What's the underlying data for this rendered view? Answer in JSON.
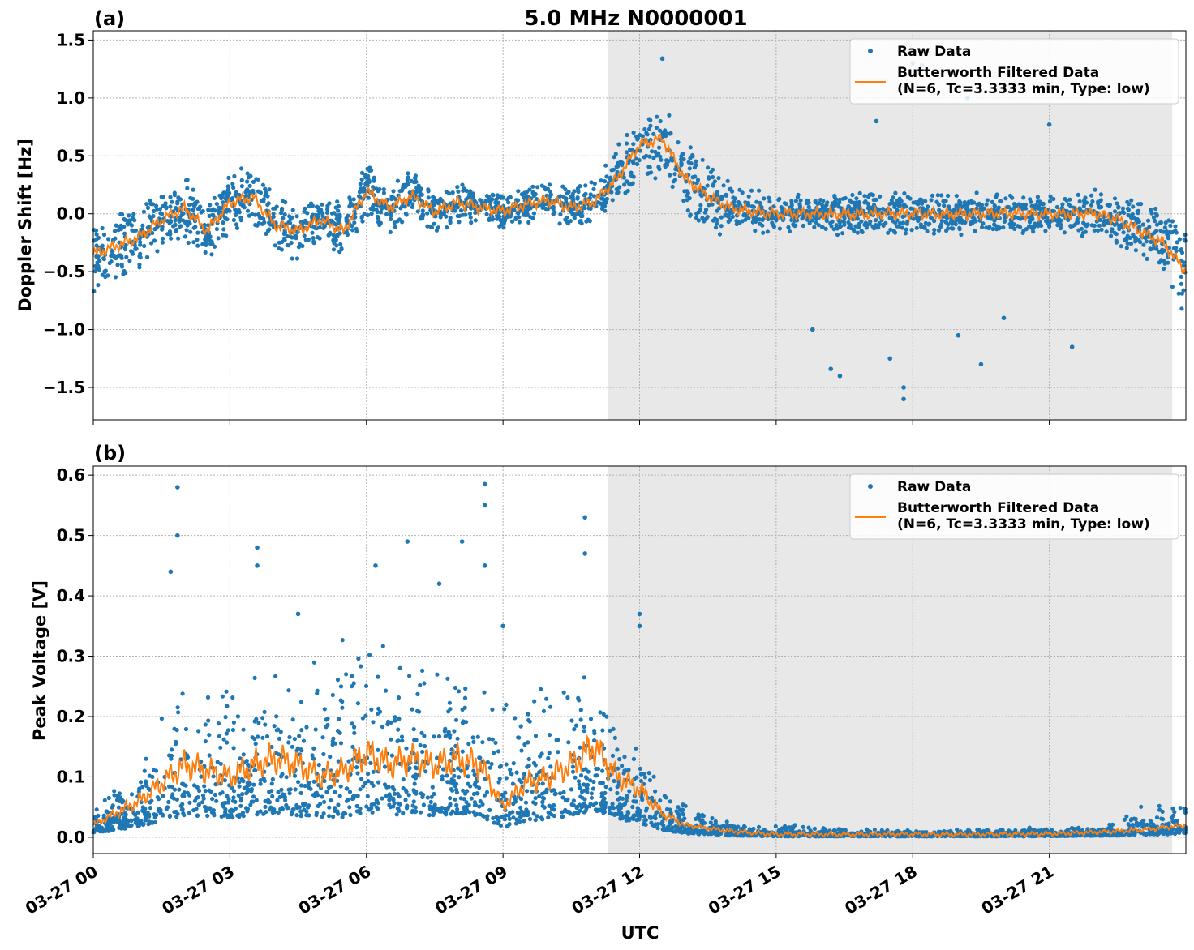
{
  "chart_data": [
    {
      "panel": "(a)",
      "type": "scatter",
      "title": "5.0 MHz N0000001",
      "xlabel": "",
      "ylabel": "Doppler Shift [Hz]",
      "xlim_hours": [
        0,
        24
      ],
      "ylim": [
        -1.78,
        1.58
      ],
      "yticks": [
        -1.5,
        -1.0,
        -0.5,
        0.0,
        0.5,
        1.0,
        1.5
      ],
      "ytick_labels": [
        "−1.5",
        "−1.0",
        "−0.5",
        "0.0",
        "0.5",
        "1.0",
        "1.5"
      ],
      "grid": true,
      "shaded_region_hours": [
        11.3,
        23.7
      ],
      "legend_position": "top-right",
      "legend": [
        "Raw Data",
        "Butterworth Filtered Data\n(N=6, Tc=3.3333 min, Type: low)"
      ],
      "series": [
        {
          "name": "Butterworth Filtered Data\n(N=6, Tc=3.3333 min, Type: low)",
          "kind": "line",
          "x_hours": [
            0,
            0.5,
            1,
            1.5,
            2,
            2.5,
            3,
            3.5,
            4,
            4.5,
            5,
            5.5,
            6,
            6.5,
            7,
            7.5,
            8,
            8.5,
            9,
            9.5,
            10,
            10.5,
            11,
            11.5,
            12,
            12.5,
            13,
            13.5,
            14,
            14.5,
            15,
            16,
            17,
            18,
            19,
            20,
            21,
            22,
            22.5,
            23,
            23.5,
            24
          ],
          "values": [
            -0.35,
            -0.28,
            -0.2,
            -0.05,
            0.05,
            -0.15,
            0.1,
            0.15,
            -0.1,
            -0.15,
            -0.05,
            -0.15,
            0.2,
            0.05,
            0.15,
            0.02,
            0.1,
            0.05,
            0.02,
            0.08,
            0.12,
            0.05,
            0.1,
            0.3,
            0.6,
            0.65,
            0.3,
            0.15,
            0.05,
            0.02,
            0.0,
            0.0,
            0.0,
            0.0,
            0.0,
            0.0,
            0.0,
            0.0,
            -0.05,
            -0.15,
            -0.25,
            -0.5
          ]
        },
        {
          "name": "Raw Data",
          "kind": "points",
          "spread_envelope_x_hours": [
            0,
            3,
            6,
            9,
            11,
            12,
            13,
            15,
            18,
            21,
            23,
            24
          ],
          "spread_envelope_halfwidth": [
            0.25,
            0.2,
            0.18,
            0.12,
            0.15,
            0.25,
            0.25,
            0.12,
            0.15,
            0.12,
            0.2,
            0.3
          ],
          "outliers": [
            [
              12.5,
              1.34
            ],
            [
              18,
              1.3
            ],
            [
              18.2,
              1.28
            ],
            [
              17.8,
              -1.6
            ],
            [
              17.8,
              -1.5
            ],
            [
              16.2,
              -1.34
            ],
            [
              16.4,
              -1.4
            ],
            [
              17.5,
              -1.25
            ],
            [
              21.5,
              -1.15
            ],
            [
              15.8,
              -1.0
            ],
            [
              19,
              -1.05
            ],
            [
              19.5,
              -1.3
            ],
            [
              20,
              -0.9
            ],
            [
              21,
              0.77
            ],
            [
              17.2,
              0.8
            ],
            [
              19.2,
              1.0
            ]
          ]
        }
      ]
    },
    {
      "panel": "(b)",
      "type": "scatter",
      "title": "",
      "xlabel": "UTC",
      "ylabel": "Peak Voltage [V]",
      "xlim_hours": [
        0,
        24
      ],
      "ylim": [
        -0.027,
        0.615
      ],
      "yticks": [
        0.0,
        0.1,
        0.2,
        0.3,
        0.4,
        0.5,
        0.6
      ],
      "ytick_labels": [
        "0.0",
        "0.1",
        "0.2",
        "0.3",
        "0.4",
        "0.5",
        "0.6"
      ],
      "xtick_hours": [
        0,
        3,
        6,
        9,
        12,
        15,
        18,
        21
      ],
      "xtick_labels": [
        "03-27 00",
        "03-27 03",
        "03-27 06",
        "03-27 09",
        "03-27 12",
        "03-27 15",
        "03-27 18",
        "03-27 21"
      ],
      "grid": true,
      "shaded_region_hours": [
        11.3,
        23.7
      ],
      "legend_position": "top-right",
      "legend": [
        "Raw Data",
        "Butterworth Filtered Data\n(N=6, Tc=3.3333 min, Type: low)"
      ],
      "series": [
        {
          "name": "Butterworth Filtered Data\n(N=6, Tc=3.3333 min, Type: low)",
          "kind": "line",
          "x_hours": [
            0,
            0.5,
            1,
            1.5,
            2,
            2.5,
            3,
            3.5,
            4,
            4.5,
            5,
            5.5,
            6,
            6.5,
            7,
            7.5,
            8,
            8.5,
            9,
            9.5,
            10,
            10.5,
            11,
            11.5,
            12,
            12.5,
            13,
            13.5,
            14,
            15,
            16,
            18,
            20,
            21,
            22,
            23,
            24
          ],
          "values": [
            0.02,
            0.04,
            0.06,
            0.09,
            0.12,
            0.11,
            0.1,
            0.12,
            0.13,
            0.12,
            0.1,
            0.11,
            0.14,
            0.12,
            0.13,
            0.12,
            0.13,
            0.12,
            0.05,
            0.09,
            0.1,
            0.12,
            0.15,
            0.1,
            0.08,
            0.04,
            0.02,
            0.015,
            0.01,
            0.005,
            0.005,
            0.005,
            0.005,
            0.006,
            0.008,
            0.012,
            0.02
          ]
        },
        {
          "name": "Raw Data",
          "kind": "points",
          "spread_envelope_x_hours": [
            0,
            1,
            2,
            3,
            6,
            9,
            11,
            12,
            12.5,
            13,
            14,
            18,
            22,
            23,
            24
          ],
          "spread_envelope_top": [
            0.04,
            0.1,
            0.22,
            0.22,
            0.28,
            0.2,
            0.25,
            0.13,
            0.08,
            0.05,
            0.02,
            0.01,
            0.015,
            0.04,
            0.045
          ],
          "outliers": [
            [
              1.85,
              0.58
            ],
            [
              1.85,
              0.5
            ],
            [
              1.7,
              0.44
            ],
            [
              3.6,
              0.48
            ],
            [
              3.6,
              0.45
            ],
            [
              4.5,
              0.37
            ],
            [
              6.2,
              0.45
            ],
            [
              6.9,
              0.49
            ],
            [
              7.6,
              0.42
            ],
            [
              8.1,
              0.49
            ],
            [
              8.6,
              0.585
            ],
            [
              8.6,
              0.55
            ],
            [
              8.6,
              0.45
            ],
            [
              9.0,
              0.35
            ],
            [
              10.8,
              0.53
            ],
            [
              10.8,
              0.47
            ],
            [
              12.0,
              0.37
            ],
            [
              12.0,
              0.35
            ]
          ]
        }
      ]
    }
  ]
}
